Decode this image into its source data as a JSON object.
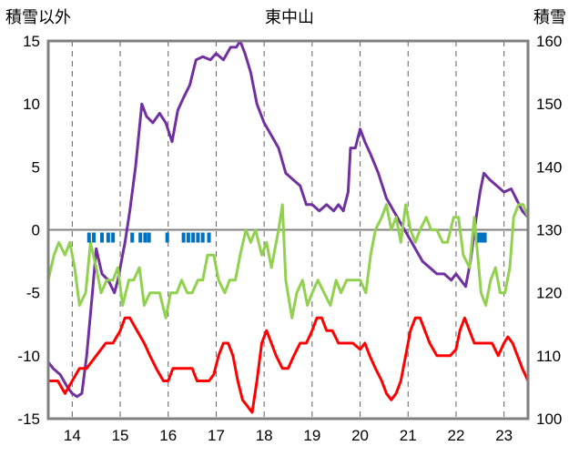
{
  "chart_data": {
    "type": "line",
    "title": "東中山",
    "ylabel_left": "積雪以外",
    "ylabel_right": "積雪",
    "xlim": [
      13.5,
      23.5
    ],
    "ylim_left": [
      -15,
      15
    ],
    "ylim_right": [
      100,
      160
    ],
    "x_ticks": [
      14,
      15,
      16,
      17,
      18,
      19,
      20,
      21,
      22,
      23
    ],
    "x_tick_labels": [
      "14",
      "15",
      "16",
      "17",
      "18",
      "19",
      "20",
      "21",
      "22",
      "23"
    ],
    "y_left_ticks": [
      15,
      10,
      5,
      0,
      -5,
      -10,
      -15
    ],
    "y_left_tick_labels": [
      "15",
      "10",
      "5",
      "0",
      "-5",
      "-10",
      "-15"
    ],
    "y_right_ticks": [
      160,
      150,
      140,
      130,
      120,
      110,
      100
    ],
    "y_right_tick_labels": [
      "160",
      "150",
      "140",
      "130",
      "120",
      "110",
      "100"
    ],
    "grid": "vertical dashed",
    "series": [
      {
        "axis": "right",
        "color": "#7030a0",
        "points": [
          [
            13.5,
            109
          ],
          [
            13.6,
            108
          ],
          [
            13.75,
            107
          ],
          [
            13.9,
            105
          ],
          [
            14.0,
            104
          ],
          [
            14.1,
            103.5
          ],
          [
            14.2,
            104
          ],
          [
            14.3,
            110
          ],
          [
            14.42,
            120
          ],
          [
            14.5,
            127
          ],
          [
            14.62,
            123
          ],
          [
            14.75,
            122
          ],
          [
            14.88,
            120
          ],
          [
            14.95,
            122
          ],
          [
            15.1,
            128
          ],
          [
            15.2,
            133
          ],
          [
            15.32,
            140
          ],
          [
            15.45,
            150
          ],
          [
            15.55,
            148
          ],
          [
            15.68,
            147
          ],
          [
            15.82,
            148.5
          ],
          [
            15.95,
            147
          ],
          [
            16.08,
            144
          ],
          [
            16.2,
            149
          ],
          [
            16.32,
            151
          ],
          [
            16.45,
            153
          ],
          [
            16.58,
            157
          ],
          [
            16.72,
            157.5
          ],
          [
            16.88,
            157
          ],
          [
            17.0,
            158
          ],
          [
            17.15,
            157
          ],
          [
            17.3,
            159
          ],
          [
            17.42,
            159
          ],
          [
            17.5,
            160
          ],
          [
            17.6,
            158
          ],
          [
            17.72,
            155
          ],
          [
            17.85,
            150
          ],
          [
            18.0,
            147
          ],
          [
            18.15,
            145
          ],
          [
            18.3,
            143
          ],
          [
            18.45,
            139
          ],
          [
            18.6,
            138
          ],
          [
            18.75,
            137
          ],
          [
            18.88,
            134
          ],
          [
            19.0,
            134
          ],
          [
            19.15,
            133
          ],
          [
            19.3,
            134
          ],
          [
            19.45,
            133
          ],
          [
            19.55,
            134
          ],
          [
            19.65,
            133
          ],
          [
            19.75,
            136
          ],
          [
            19.8,
            143
          ],
          [
            19.9,
            143
          ],
          [
            20.0,
            146
          ],
          [
            20.1,
            144
          ],
          [
            20.22,
            142
          ],
          [
            20.38,
            139
          ],
          [
            20.55,
            135
          ],
          [
            20.7,
            133
          ],
          [
            20.85,
            131
          ],
          [
            21.0,
            129
          ],
          [
            21.15,
            127
          ],
          [
            21.3,
            125
          ],
          [
            21.45,
            124
          ],
          [
            21.6,
            123
          ],
          [
            21.75,
            123
          ],
          [
            21.9,
            122
          ],
          [
            22.0,
            123
          ],
          [
            22.1,
            122
          ],
          [
            22.2,
            121
          ],
          [
            22.3,
            125
          ],
          [
            22.42,
            132
          ],
          [
            22.5,
            136
          ],
          [
            22.58,
            139
          ],
          [
            22.7,
            138
          ],
          [
            22.85,
            137
          ],
          [
            23.0,
            136
          ],
          [
            23.15,
            136.5
          ],
          [
            23.25,
            135
          ],
          [
            23.38,
            133
          ],
          [
            23.5,
            132
          ]
        ]
      },
      {
        "axis": "left",
        "color": "#92d050",
        "points": [
          [
            13.5,
            -4
          ],
          [
            13.62,
            -2
          ],
          [
            13.72,
            -1
          ],
          [
            13.85,
            -2
          ],
          [
            13.95,
            -1
          ],
          [
            14.05,
            -3
          ],
          [
            14.15,
            -6
          ],
          [
            14.28,
            -5
          ],
          [
            14.38,
            -1
          ],
          [
            14.5,
            -3
          ],
          [
            14.6,
            -5
          ],
          [
            14.72,
            -4
          ],
          [
            14.85,
            -4
          ],
          [
            14.95,
            -3
          ],
          [
            15.05,
            -6
          ],
          [
            15.18,
            -4
          ],
          [
            15.28,
            -4
          ],
          [
            15.4,
            -3
          ],
          [
            15.5,
            -6
          ],
          [
            15.62,
            -5
          ],
          [
            15.72,
            -5
          ],
          [
            15.82,
            -5
          ],
          [
            15.95,
            -7
          ],
          [
            16.05,
            -5
          ],
          [
            16.18,
            -5
          ],
          [
            16.28,
            -4
          ],
          [
            16.4,
            -5
          ],
          [
            16.5,
            -5
          ],
          [
            16.62,
            -4
          ],
          [
            16.72,
            -4
          ],
          [
            16.82,
            -2
          ],
          [
            16.95,
            -2
          ],
          [
            17.05,
            -4
          ],
          [
            17.18,
            -5
          ],
          [
            17.28,
            -4
          ],
          [
            17.4,
            -4
          ],
          [
            17.5,
            -2
          ],
          [
            17.62,
            0
          ],
          [
            17.72,
            -1
          ],
          [
            17.82,
            0
          ],
          [
            17.95,
            -2
          ],
          [
            18.05,
            -1
          ],
          [
            18.15,
            -3
          ],
          [
            18.3,
            0
          ],
          [
            18.38,
            2
          ],
          [
            18.45,
            -4
          ],
          [
            18.58,
            -7
          ],
          [
            18.68,
            -5
          ],
          [
            18.8,
            -4
          ],
          [
            18.9,
            -6
          ],
          [
            19.0,
            -5
          ],
          [
            19.12,
            -4
          ],
          [
            19.25,
            -5
          ],
          [
            19.38,
            -6
          ],
          [
            19.5,
            -4
          ],
          [
            19.6,
            -5
          ],
          [
            19.72,
            -4
          ],
          [
            19.82,
            -4
          ],
          [
            19.9,
            -4
          ],
          [
            20.0,
            -4
          ],
          [
            20.12,
            -5
          ],
          [
            20.22,
            -2
          ],
          [
            20.32,
            0
          ],
          [
            20.45,
            1
          ],
          [
            20.55,
            2
          ],
          [
            20.65,
            0
          ],
          [
            20.75,
            1
          ],
          [
            20.85,
            -1
          ],
          [
            20.95,
            2
          ],
          [
            21.05,
            0
          ],
          [
            21.15,
            -1
          ],
          [
            21.25,
            0
          ],
          [
            21.38,
            1
          ],
          [
            21.48,
            0
          ],
          [
            21.6,
            0
          ],
          [
            21.72,
            -1
          ],
          [
            21.82,
            -1
          ],
          [
            21.95,
            1
          ],
          [
            22.05,
            1
          ],
          [
            22.15,
            -2
          ],
          [
            22.28,
            -3
          ],
          [
            22.38,
            1
          ],
          [
            22.45,
            -2
          ],
          [
            22.52,
            -5
          ],
          [
            22.62,
            -6
          ],
          [
            22.72,
            -4
          ],
          [
            22.82,
            -3
          ],
          [
            22.92,
            -5
          ],
          [
            23.02,
            -5
          ],
          [
            23.12,
            -3
          ],
          [
            23.2,
            1
          ],
          [
            23.3,
            2
          ],
          [
            23.4,
            2
          ],
          [
            23.5,
            1
          ]
        ]
      },
      {
        "axis": "left",
        "color": "#ff0000",
        "points": [
          [
            13.5,
            -12
          ],
          [
            13.7,
            -12
          ],
          [
            13.85,
            -13
          ],
          [
            14.0,
            -12
          ],
          [
            14.15,
            -11
          ],
          [
            14.3,
            -11
          ],
          [
            14.5,
            -10
          ],
          [
            14.7,
            -9
          ],
          [
            14.85,
            -9
          ],
          [
            15.0,
            -8
          ],
          [
            15.1,
            -7
          ],
          [
            15.2,
            -7
          ],
          [
            15.35,
            -8
          ],
          [
            15.5,
            -9
          ],
          [
            15.62,
            -10
          ],
          [
            15.75,
            -11
          ],
          [
            15.9,
            -12
          ],
          [
            16.0,
            -12
          ],
          [
            16.1,
            -11
          ],
          [
            16.22,
            -11
          ],
          [
            16.35,
            -11
          ],
          [
            16.5,
            -11
          ],
          [
            16.6,
            -12
          ],
          [
            16.72,
            -12
          ],
          [
            16.85,
            -12
          ],
          [
            16.95,
            -11.5
          ],
          [
            17.05,
            -10
          ],
          [
            17.15,
            -9
          ],
          [
            17.25,
            -9
          ],
          [
            17.35,
            -10
          ],
          [
            17.45,
            -12
          ],
          [
            17.55,
            -13.5
          ],
          [
            17.65,
            -14
          ],
          [
            17.75,
            -14.5
          ],
          [
            17.85,
            -12
          ],
          [
            17.95,
            -9
          ],
          [
            18.05,
            -8
          ],
          [
            18.15,
            -9
          ],
          [
            18.25,
            -10
          ],
          [
            18.38,
            -11
          ],
          [
            18.5,
            -11
          ],
          [
            18.62,
            -10
          ],
          [
            18.75,
            -9
          ],
          [
            18.88,
            -9
          ],
          [
            19.0,
            -8
          ],
          [
            19.1,
            -7
          ],
          [
            19.2,
            -7
          ],
          [
            19.3,
            -8
          ],
          [
            19.42,
            -8
          ],
          [
            19.55,
            -9
          ],
          [
            19.7,
            -9
          ],
          [
            19.85,
            -9
          ],
          [
            20.0,
            -9.5
          ],
          [
            20.1,
            -9
          ],
          [
            20.2,
            -10
          ],
          [
            20.32,
            -11
          ],
          [
            20.45,
            -12
          ],
          [
            20.55,
            -13
          ],
          [
            20.65,
            -13.5
          ],
          [
            20.75,
            -13
          ],
          [
            20.85,
            -12
          ],
          [
            20.95,
            -10
          ],
          [
            21.05,
            -8
          ],
          [
            21.15,
            -7
          ],
          [
            21.25,
            -7
          ],
          [
            21.35,
            -8
          ],
          [
            21.45,
            -9
          ],
          [
            21.6,
            -10
          ],
          [
            21.75,
            -10
          ],
          [
            21.88,
            -10
          ],
          [
            22.0,
            -9.5
          ],
          [
            22.08,
            -8
          ],
          [
            22.18,
            -7
          ],
          [
            22.28,
            -8
          ],
          [
            22.38,
            -9
          ],
          [
            22.5,
            -9
          ],
          [
            22.62,
            -9
          ],
          [
            22.75,
            -9
          ],
          [
            22.88,
            -10
          ],
          [
            23.0,
            -9
          ],
          [
            23.08,
            -8.5
          ],
          [
            23.18,
            -9
          ],
          [
            23.28,
            -10
          ],
          [
            23.38,
            -11
          ],
          [
            23.5,
            -12
          ]
        ]
      }
    ],
    "markers": {
      "color": "#0070c0",
      "y": 0,
      "x": [
        14.35,
        14.45,
        14.62,
        14.75,
        14.85,
        15.25,
        15.42,
        15.52,
        15.6,
        15.98,
        16.32,
        16.42,
        16.52,
        16.62,
        16.72,
        16.85,
        22.48,
        22.55,
        22.6
      ]
    }
  }
}
